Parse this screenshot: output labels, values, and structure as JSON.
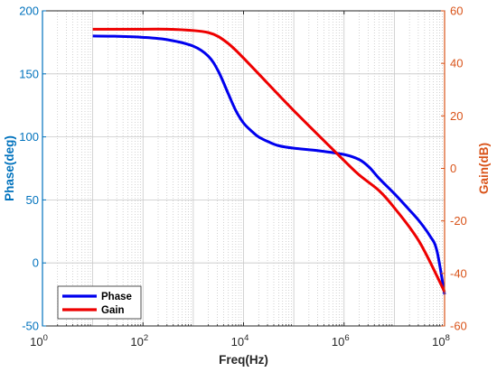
{
  "colors": {
    "phase": "#0000EE",
    "gain": "#EE0000",
    "left_axis": "#0072BD",
    "right_axis": "#D95319",
    "grid": "#c8c8c8"
  },
  "chart_data": {
    "type": "line",
    "title": "",
    "xlabel": "Freq(Hz)",
    "ylabel_left": "Phase(deg)",
    "ylabel_right": "Gain(dB)",
    "xscale": "log",
    "xlim": [
      1,
      100000000
    ],
    "ylim_left": [
      -50,
      200
    ],
    "ylim_right": [
      -60,
      60
    ],
    "x_ticks": [
      {
        "value": 1,
        "base": "10",
        "exp": "0"
      },
      {
        "value": 100,
        "base": "10",
        "exp": "2"
      },
      {
        "value": 10000,
        "base": "10",
        "exp": "4"
      },
      {
        "value": 1000000,
        "base": "10",
        "exp": "6"
      },
      {
        "value": 100000000,
        "base": "10",
        "exp": "8"
      }
    ],
    "y_left_ticks": [
      "-50",
      "0",
      "50",
      "100",
      "150",
      "200"
    ],
    "y_right_ticks": [
      "-60",
      "-40",
      "-20",
      "0",
      "20",
      "40",
      "60"
    ],
    "grid": true,
    "legend": {
      "position": "bottom-left",
      "entries": [
        "Phase",
        "Gain"
      ]
    },
    "series": [
      {
        "name": "Phase",
        "axis": "left",
        "x": [
          10,
          31.6,
          100,
          316,
          1000,
          2000,
          3160,
          5000,
          7000,
          10000,
          15000,
          20000,
          31600,
          50000,
          100000,
          316000,
          1000000,
          2000000,
          3160000,
          5000000,
          10000000,
          20000000,
          31600000,
          50000000,
          70000000,
          100000000
        ],
        "y": [
          180,
          179.8,
          179,
          177,
          172,
          164,
          152,
          134,
          121,
          111,
          104,
          100,
          96,
          93,
          91,
          89,
          86,
          82,
          76,
          67,
          55,
          42,
          33,
          22,
          10,
          -25
        ]
      },
      {
        "name": "Gain",
        "axis": "right",
        "x": [
          10,
          100,
          316,
          1000,
          2000,
          3160,
          5000,
          7000,
          10000,
          20000,
          100000,
          1000000,
          2000000,
          5000000,
          10000000,
          31600000,
          100000000
        ],
        "y": [
          53,
          53,
          53,
          52.5,
          51.7,
          50.2,
          47.5,
          45,
          42,
          36,
          22,
          3,
          -2.5,
          -8.5,
          -15,
          -28,
          -47
        ]
      }
    ]
  }
}
